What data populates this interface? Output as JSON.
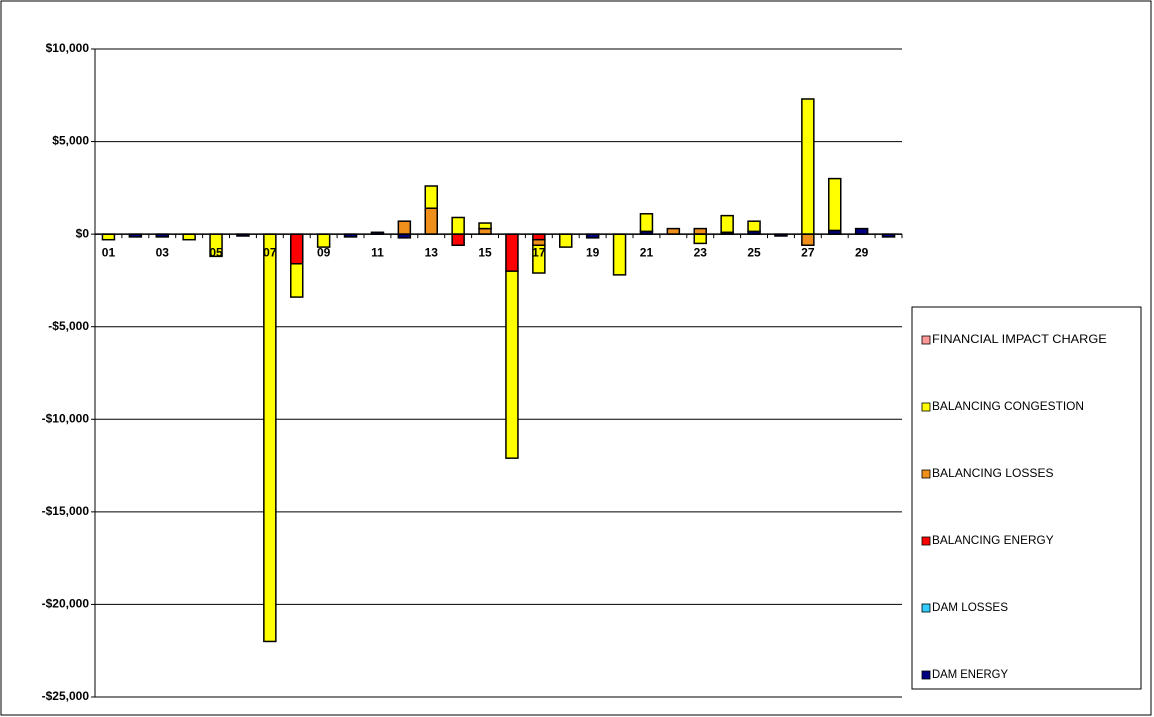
{
  "chart_data": {
    "type": "stacked_bar",
    "categories": [
      "01",
      null,
      "03",
      null,
      "05",
      null,
      "07",
      null,
      "09",
      null,
      "11",
      null,
      "13",
      null,
      "15",
      null,
      "17",
      null,
      "19",
      null,
      "21",
      null,
      "23",
      null,
      "25",
      null,
      "27",
      null,
      "29",
      null
    ],
    "series": [
      {
        "name": "FINANCIAL IMPACT CHARGE",
        "color": "#ff9999",
        "values": [
          0,
          0,
          0,
          0,
          0,
          0,
          0,
          0,
          0,
          0,
          0,
          0,
          0,
          0,
          0,
          0,
          0,
          0,
          0,
          0,
          0,
          0,
          0,
          0,
          0,
          0,
          0,
          0,
          0,
          0
        ]
      },
      {
        "name": "BALANCING CONGESTION",
        "color": "#ffff00",
        "values": [
          -300,
          0,
          0,
          -300,
          -1200,
          0,
          -22000,
          -1800,
          -700,
          0,
          0,
          0,
          1200,
          900,
          300,
          -10100,
          -1500,
          -700,
          0,
          -2200,
          950,
          0,
          -500,
          900,
          550,
          0,
          7300,
          2800,
          0,
          0
        ]
      },
      {
        "name": "BALANCING LOSSES",
        "color": "#f0901c",
        "values": [
          0,
          0,
          0,
          0,
          0,
          0,
          0,
          0,
          0,
          0,
          0,
          700,
          1400,
          0,
          300,
          0,
          -300,
          0,
          0,
          0,
          0,
          300,
          300,
          0,
          0,
          0,
          -600,
          0,
          0,
          0
        ]
      },
      {
        "name": "BALANCING ENERGY",
        "color": "#ff0000",
        "values": [
          0,
          0,
          0,
          0,
          0,
          0,
          0,
          -1600,
          0,
          0,
          0,
          0,
          0,
          -600,
          0,
          -2000,
          -300,
          0,
          0,
          0,
          0,
          0,
          0,
          0,
          0,
          0,
          0,
          0,
          0,
          0
        ]
      },
      {
        "name": "DAM LOSSES",
        "color": "#33ccff",
        "values": [
          0,
          0,
          0,
          0,
          0,
          0,
          0,
          0,
          0,
          0,
          0,
          0,
          0,
          0,
          0,
          0,
          0,
          0,
          0,
          0,
          0,
          0,
          0,
          0,
          0,
          0,
          0,
          0,
          0,
          0
        ]
      },
      {
        "name": "DAM ENERGY",
        "color": "#000080",
        "values": [
          0,
          -150,
          -150,
          0,
          0,
          -100,
          0,
          0,
          0,
          -150,
          100,
          -200,
          0,
          0,
          0,
          0,
          0,
          0,
          -200,
          0,
          150,
          0,
          0,
          100,
          150,
          -100,
          0,
          200,
          300,
          -150
        ]
      }
    ],
    "ylim": [
      -25000,
      10000
    ],
    "yticks": [
      {
        "value": 10000,
        "label": "$10,000"
      },
      {
        "value": 5000,
        "label": "$5,000"
      },
      {
        "value": 0,
        "label": "$0"
      },
      {
        "value": -5000,
        "label": "-$5,000"
      },
      {
        "value": -10000,
        "label": "-$10,000"
      },
      {
        "value": -15000,
        "label": "-$15,000"
      },
      {
        "value": -20000,
        "label": "-$20,000"
      },
      {
        "value": -25000,
        "label": "-$25,000"
      }
    ],
    "grid": true
  }
}
